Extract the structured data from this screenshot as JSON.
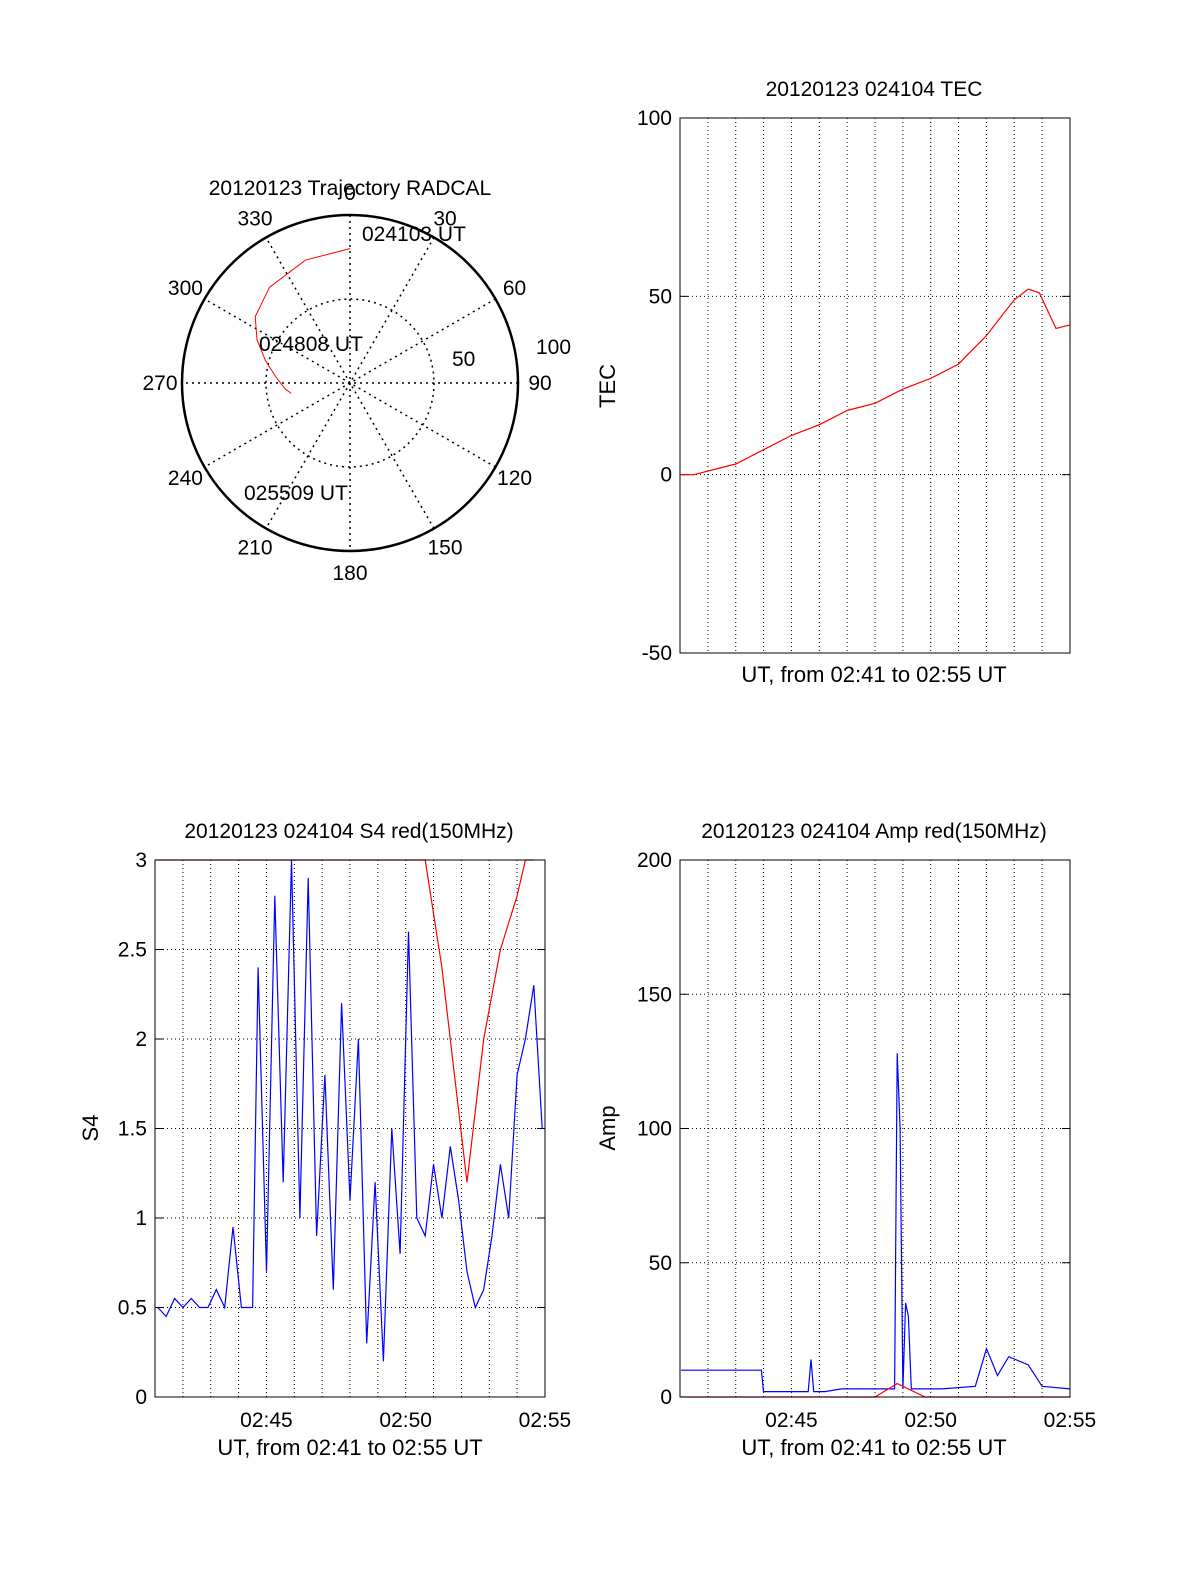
{
  "colors": {
    "trace_primary": "#ff0000",
    "trace_secondary": "#0000ff",
    "axis": "#000000",
    "grid": "#000000",
    "background": "#ffffff"
  },
  "chart_data": [
    {
      "type": "polar",
      "title": "20120123 Trajectory RADCAL",
      "angle_ticks": [
        "0",
        "30",
        "60",
        "90",
        "120",
        "150",
        "180",
        "210",
        "240",
        "270",
        "300",
        "330"
      ],
      "radius_ticks": [
        "50",
        "100"
      ],
      "rlim": [
        0,
        100
      ],
      "grid": true,
      "annotations": [
        "024103 UT",
        "024808 UT",
        "025509 UT"
      ],
      "trajectory": {
        "azimuth_deg": [
          0,
          340,
          320,
          305,
          295,
          285,
          275,
          265,
          260
        ],
        "elevation_deg": [
          18,
          20,
          23,
          28,
          35,
          43,
          50,
          55,
          58
        ]
      }
    },
    {
      "type": "line",
      "title": "20120123 024104 TEC",
      "xlabel": "UT, from 02:41 to 02:55 UT",
      "ylabel": "TEC",
      "ylim": [
        -50,
        100
      ],
      "yticks": [
        "-50",
        "0",
        "50",
        "100"
      ],
      "xlim": [
        2.6833,
        2.9167
      ],
      "grid": true,
      "series": [
        {
          "color": "#ff0000",
          "x": [
            2.6833,
            2.6917,
            2.7,
            2.7083,
            2.7167,
            2.7333,
            2.75,
            2.7667,
            2.7833,
            2.8,
            2.8167,
            2.8333,
            2.85,
            2.8583,
            2.8667,
            2.8733,
            2.8833,
            2.8917,
            2.8983,
            2.9083,
            2.9167
          ],
          "y": [
            0,
            0,
            1,
            2,
            3,
            7,
            11,
            14,
            18,
            20,
            24,
            27,
            31,
            35,
            39,
            43,
            49,
            52,
            51,
            41,
            42
          ]
        }
      ]
    },
    {
      "type": "line",
      "title": "20120123 024104 S4 red(150MHz)",
      "xlabel": "UT, from 02:41 to 02:55 UT",
      "ylabel": "S4",
      "ylim": [
        0,
        3
      ],
      "yticks": [
        "0",
        "0.5",
        "1",
        "1.5",
        "2",
        "2.5",
        "3"
      ],
      "xticks": [
        "02:45",
        "02:50",
        "02:55"
      ],
      "xlim": [
        2.6833,
        2.9167
      ],
      "grid": true,
      "series": [
        {
          "color": "#0000ff",
          "x": [
            2.685,
            2.69,
            2.695,
            2.7,
            2.705,
            2.71,
            2.715,
            2.72,
            2.725,
            2.73,
            2.735,
            2.74,
            2.7417,
            2.745,
            2.75,
            2.755,
            2.76,
            2.765,
            2.77,
            2.775,
            2.78,
            2.785,
            2.79,
            2.795,
            2.8,
            2.805,
            2.81,
            2.815,
            2.82,
            2.825,
            2.83,
            2.835,
            2.84,
            2.845,
            2.85,
            2.855,
            2.86,
            2.865,
            2.87,
            2.875,
            2.88,
            2.885,
            2.89,
            2.895,
            2.9,
            2.905,
            2.91,
            2.915
          ],
          "y": [
            0.5,
            0.45,
            0.55,
            0.5,
            0.55,
            0.5,
            0.5,
            0.6,
            0.5,
            0.95,
            0.5,
            0.5,
            0.5,
            2.4,
            0.7,
            2.8,
            1.2,
            3.0,
            1.0,
            2.9,
            0.9,
            1.8,
            0.6,
            2.2,
            1.1,
            2.0,
            0.3,
            1.2,
            0.2,
            1.5,
            0.8,
            2.6,
            1.0,
            0.9,
            1.3,
            1.0,
            1.4,
            1.1,
            0.7,
            0.5,
            0.6,
            0.9,
            1.3,
            1.0,
            1.8,
            2.0,
            2.3,
            1.5
          ]
        },
        {
          "color": "#ff0000",
          "x": [
            2.684,
            2.7,
            2.7167,
            2.7333,
            2.75,
            2.76,
            2.7683,
            2.7767,
            2.785,
            2.79,
            2.795,
            2.8,
            2.805,
            2.81,
            2.815,
            2.82,
            2.825,
            2.83,
            2.835,
            2.84,
            2.845,
            2.855,
            2.87,
            2.88,
            2.89,
            2.9,
            2.905,
            2.91
          ],
          "y": [
            3.0,
            3.0,
            3.0,
            3.0,
            3.0,
            3.0,
            3.0,
            3.0,
            3.0,
            3.0,
            3.0,
            3.0,
            3.0,
            3.0,
            3.0,
            3.0,
            3.0,
            3.0,
            3.0,
            3.0,
            3.0,
            2.4,
            1.2,
            2.0,
            2.5,
            2.8,
            3.0,
            3.0
          ]
        }
      ]
    },
    {
      "type": "line",
      "title": "20120123 024104 Amp red(150MHz)",
      "xlabel": "UT, from 02:41 to 02:55 UT",
      "ylabel": "Amp",
      "ylim": [
        0,
        200
      ],
      "yticks": [
        "0",
        "50",
        "100",
        "150",
        "200"
      ],
      "xticks": [
        "02:45",
        "02:50",
        "02:55"
      ],
      "xlim": [
        2.6833,
        2.9167
      ],
      "grid": true,
      "series": [
        {
          "color": "#0000ff",
          "x": [
            2.684,
            2.7,
            2.72,
            2.732,
            2.7333,
            2.74,
            2.76,
            2.7617,
            2.7633,
            2.77,
            2.78,
            2.8,
            2.8117,
            2.8133,
            2.815,
            2.8167,
            2.8183,
            2.82,
            2.8217,
            2.8233,
            2.84,
            2.86,
            2.8667,
            2.8733,
            2.88,
            2.8917,
            2.9,
            2.9167
          ],
          "y": [
            10,
            10,
            10,
            10,
            2,
            2,
            2,
            14,
            2,
            2,
            3,
            3,
            3,
            128,
            100,
            3,
            35,
            30,
            3,
            3,
            3,
            4,
            18,
            8,
            15,
            12,
            4,
            3
          ]
        },
        {
          "color": "#ff0000",
          "x": [
            2.684,
            2.75,
            2.8,
            2.8133,
            2.83,
            2.86,
            2.9167
          ],
          "y": [
            0,
            0,
            0,
            5,
            0,
            0,
            0
          ]
        }
      ]
    }
  ]
}
